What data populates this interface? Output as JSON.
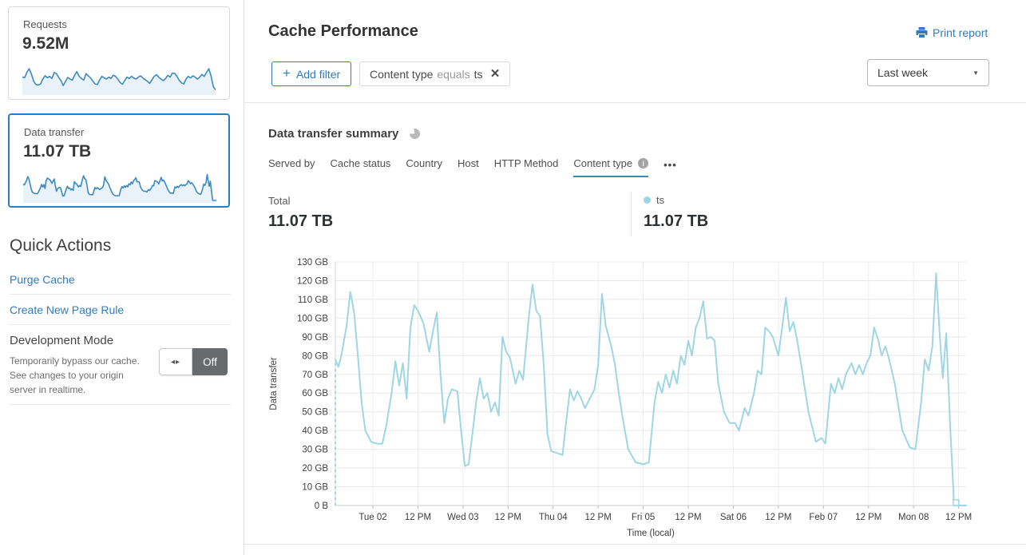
{
  "icons": {
    "plus": "+",
    "close": "×",
    "caret": "▼",
    "more": "•••",
    "toggle_arrows": "◂▸",
    "info": "i",
    "printer": "printer-glyph",
    "pie": "pie-glyph"
  },
  "sidebar": {
    "requests_card": {
      "label": "Requests",
      "value": "9.52M",
      "sparkline_values": [
        58,
        55,
        75,
        88,
        68,
        42,
        30,
        28,
        32,
        50,
        62,
        55,
        60,
        52,
        74,
        70,
        56,
        44,
        26,
        42,
        56,
        50,
        46,
        64,
        77,
        60,
        52,
        46,
        70,
        62,
        54,
        42,
        32,
        30,
        47,
        60,
        54,
        50,
        57,
        52,
        64,
        60,
        50,
        37,
        31,
        44,
        57,
        52,
        60,
        54,
        50,
        57,
        62,
        54,
        48,
        42,
        34,
        47,
        60,
        66,
        57,
        50,
        44,
        52,
        64,
        57,
        72,
        71,
        60,
        46,
        36,
        32,
        50,
        60,
        54,
        62,
        57,
        50,
        57,
        67,
        60,
        74,
        88,
        62,
        22,
        10
      ]
    },
    "data_transfer_card": {
      "label": "Data transfer",
      "value": "11.07 TB"
    },
    "quick_actions": {
      "title": "Quick Actions",
      "links": [
        {
          "label": "Purge Cache"
        },
        {
          "label": "Create New Page Rule"
        }
      ],
      "development_mode": {
        "title": "Development Mode",
        "description": "Temporarily bypass our cache. See changes to your origin server in realtime.",
        "state": "Off"
      }
    }
  },
  "header": {
    "title": "Cache Performance",
    "print_report": "Print report",
    "add_filter_label": "Add filter",
    "filter_chip": {
      "field": "Content type",
      "operator": "equals",
      "value": "ts"
    },
    "time_range": "Last week"
  },
  "summary": {
    "title": "Data transfer summary",
    "tabs": [
      {
        "label": "Served by"
      },
      {
        "label": "Cache status"
      },
      {
        "label": "Country"
      },
      {
        "label": "Host"
      },
      {
        "label": "HTTP Method"
      },
      {
        "label": "Content type"
      }
    ],
    "active_tab": "Content type",
    "total_label": "Total",
    "total_value": "11.07 TB",
    "legend": {
      "name": "ts",
      "value": "11.07 TB",
      "color": "#9bd4e4"
    }
  },
  "chart_data": {
    "type": "line",
    "title": "Data transfer summary",
    "xlabel": "Time (local)",
    "ylabel": "Data transfer",
    "unit": "GB",
    "ylim": [
      0,
      130
    ],
    "xlim_hours": [
      0,
      168
    ],
    "grid": true,
    "y_ticks": [
      {
        "v": 0,
        "label": "0 B"
      },
      {
        "v": 10,
        "label": "10 GB"
      },
      {
        "v": 20,
        "label": "20 GB"
      },
      {
        "v": 30,
        "label": "30 GB"
      },
      {
        "v": 40,
        "label": "40 GB"
      },
      {
        "v": 50,
        "label": "50 GB"
      },
      {
        "v": 60,
        "label": "60 GB"
      },
      {
        "v": 70,
        "label": "70 GB"
      },
      {
        "v": 80,
        "label": "80 GB"
      },
      {
        "v": 90,
        "label": "90 GB"
      },
      {
        "v": 100,
        "label": "100 GB"
      },
      {
        "v": 110,
        "label": "110 GB"
      },
      {
        "v": 120,
        "label": "120 GB"
      },
      {
        "v": 130,
        "label": "130 GB"
      }
    ],
    "x_ticks": [
      {
        "h": 10,
        "label": "Tue 02"
      },
      {
        "h": 22,
        "label": "12 PM"
      },
      {
        "h": 34,
        "label": "Wed 03"
      },
      {
        "h": 46,
        "label": "12 PM"
      },
      {
        "h": 58,
        "label": "Thu 04"
      },
      {
        "h": 70,
        "label": "12 PM"
      },
      {
        "h": 82,
        "label": "Fri 05"
      },
      {
        "h": 94,
        "label": "12 PM"
      },
      {
        "h": 106,
        "label": "Sat 06"
      },
      {
        "h": 118,
        "label": "12 PM"
      },
      {
        "h": 130,
        "label": "Feb 07"
      },
      {
        "h": 142,
        "label": "12 PM"
      },
      {
        "h": 154,
        "label": "Mon 08"
      },
      {
        "h": 166,
        "label": "12 PM"
      }
    ],
    "start_dashed_riser": true,
    "end_marker_hour": 165.3,
    "series": [
      {
        "name": "ts",
        "color": "#9fd6e4",
        "points": [
          [
            0,
            78
          ],
          [
            0.8,
            74
          ],
          [
            1.6,
            80
          ],
          [
            3,
            96
          ],
          [
            4,
            114
          ],
          [
            5,
            103
          ],
          [
            6,
            80
          ],
          [
            7,
            55
          ],
          [
            8,
            40
          ],
          [
            9.5,
            34
          ],
          [
            11,
            33
          ],
          [
            12.5,
            33
          ],
          [
            13.5,
            42
          ],
          [
            15,
            60
          ],
          [
            16,
            77
          ],
          [
            17,
            64
          ],
          [
            18,
            76
          ],
          [
            19,
            57
          ],
          [
            20,
            95
          ],
          [
            21,
            107
          ],
          [
            22,
            104
          ],
          [
            23.5,
            97
          ],
          [
            25,
            82
          ],
          [
            26,
            93
          ],
          [
            27,
            103
          ],
          [
            28,
            70
          ],
          [
            29,
            44
          ],
          [
            30,
            57
          ],
          [
            31,
            62
          ],
          [
            32.5,
            61
          ],
          [
            33.5,
            40
          ],
          [
            34.5,
            21
          ],
          [
            35.5,
            22
          ],
          [
            36.5,
            38
          ],
          [
            37.5,
            55
          ],
          [
            38.5,
            68
          ],
          [
            39.5,
            57
          ],
          [
            40.5,
            60
          ],
          [
            41.5,
            50
          ],
          [
            42.5,
            55
          ],
          [
            43.5,
            48
          ],
          [
            44.5,
            90
          ],
          [
            45.5,
            82
          ],
          [
            46.5,
            79
          ],
          [
            48,
            65
          ],
          [
            49,
            72
          ],
          [
            50,
            67
          ],
          [
            51.5,
            100
          ],
          [
            52.5,
            118
          ],
          [
            53.5,
            104
          ],
          [
            54.5,
            101
          ],
          [
            55.5,
            75
          ],
          [
            56.5,
            38
          ],
          [
            57.5,
            29
          ],
          [
            59,
            28
          ],
          [
            60.5,
            27
          ],
          [
            61.5,
            45
          ],
          [
            62.5,
            62
          ],
          [
            63.5,
            56
          ],
          [
            64.5,
            61
          ],
          [
            65.5,
            57
          ],
          [
            66.5,
            52
          ],
          [
            68,
            58
          ],
          [
            69,
            62
          ],
          [
            70,
            75
          ],
          [
            71,
            113
          ],
          [
            72,
            96
          ],
          [
            73.5,
            85
          ],
          [
            74.5,
            75
          ],
          [
            75.5,
            60
          ],
          [
            76.5,
            47
          ],
          [
            78,
            30
          ],
          [
            80,
            23
          ],
          [
            82,
            22
          ],
          [
            83.5,
            23
          ],
          [
            85,
            55
          ],
          [
            86,
            66
          ],
          [
            87,
            60
          ],
          [
            88,
            70
          ],
          [
            89,
            63
          ],
          [
            90,
            72
          ],
          [
            91,
            65
          ],
          [
            92,
            80
          ],
          [
            93,
            75
          ],
          [
            94,
            88
          ],
          [
            95,
            80
          ],
          [
            96,
            95
          ],
          [
            97,
            100
          ],
          [
            98,
            109
          ],
          [
            99,
            89
          ],
          [
            100,
            90
          ],
          [
            101,
            88
          ],
          [
            102,
            65
          ],
          [
            103.5,
            50
          ],
          [
            105,
            44
          ],
          [
            106.5,
            44
          ],
          [
            107.5,
            40
          ],
          [
            109,
            52
          ],
          [
            110,
            48
          ],
          [
            111.5,
            60
          ],
          [
            112.5,
            72
          ],
          [
            113.5,
            70
          ],
          [
            114.5,
            95
          ],
          [
            115.5,
            93
          ],
          [
            116.5,
            90
          ],
          [
            118,
            80
          ],
          [
            119,
            95
          ],
          [
            120,
            111
          ],
          [
            121,
            93
          ],
          [
            122,
            98
          ],
          [
            123,
            88
          ],
          [
            124,
            76
          ],
          [
            126,
            50
          ],
          [
            128,
            34
          ],
          [
            129.5,
            36
          ],
          [
            130.5,
            33
          ],
          [
            132,
            65
          ],
          [
            133,
            60
          ],
          [
            134,
            68
          ],
          [
            135,
            62
          ],
          [
            136,
            70
          ],
          [
            137.5,
            76
          ],
          [
            138.5,
            70
          ],
          [
            139.5,
            75
          ],
          [
            140.5,
            70
          ],
          [
            141.5,
            76
          ],
          [
            142.5,
            80
          ],
          [
            143.5,
            95
          ],
          [
            144.5,
            89
          ],
          [
            145.5,
            80
          ],
          [
            146.5,
            85
          ],
          [
            147.5,
            78
          ],
          [
            149,
            65
          ],
          [
            151,
            40
          ],
          [
            153,
            31
          ],
          [
            154.5,
            30
          ],
          [
            156,
            55
          ],
          [
            157,
            78
          ],
          [
            158,
            72
          ],
          [
            159,
            85
          ],
          [
            160,
            124
          ],
          [
            161,
            90
          ],
          [
            161.8,
            68
          ],
          [
            162.7,
            92
          ],
          [
            163.8,
            40
          ],
          [
            164.8,
            0
          ],
          [
            168,
            0
          ]
        ]
      }
    ]
  }
}
